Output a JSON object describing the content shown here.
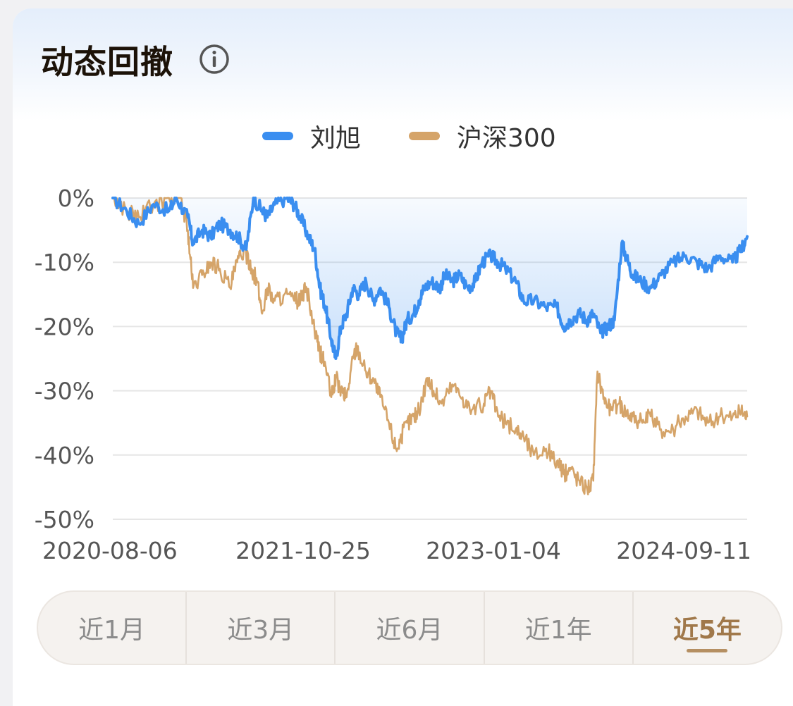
{
  "header": {
    "title": "动态回撤",
    "info_icon": "info-circle-icon"
  },
  "colors": {
    "fund": "#3a8ef0",
    "index": "#d5a469",
    "active_tab": "#a0784a"
  },
  "range_tabs": [
    {
      "label": "近1月",
      "active": false
    },
    {
      "label": "近3月",
      "active": false
    },
    {
      "label": "近6月",
      "active": false
    },
    {
      "label": "近1年",
      "active": false
    },
    {
      "label": "近5年",
      "active": true
    }
  ],
  "chart_data": {
    "type": "line",
    "title": "",
    "xlabel": "",
    "ylabel": "",
    "ylim": [
      -50,
      0
    ],
    "yticks": [
      "0%",
      "-10%",
      "-20%",
      "-30%",
      "-40%",
      "-50%"
    ],
    "yticks_values": [
      0,
      -10,
      -20,
      -30,
      -40,
      -50
    ],
    "xticks": [
      "2020-08-06",
      "2021-10-25",
      "2023-01-04",
      "2024-09-11"
    ],
    "x_range": [
      "2020-08-06",
      "2025-08-06"
    ],
    "grid": true,
    "legend": "top-center",
    "series": [
      {
        "name": "刘旭",
        "color": "#3a8ef0",
        "fill": true,
        "points": [
          [
            "2020-08-06",
            0
          ],
          [
            "2020-09-15",
            -2
          ],
          [
            "2020-10-20",
            -4
          ],
          [
            "2020-12-01",
            -1
          ],
          [
            "2021-01-15",
            -2
          ],
          [
            "2021-02-05",
            0
          ],
          [
            "2021-03-10",
            -3
          ],
          [
            "2021-03-25",
            -7
          ],
          [
            "2021-04-20",
            -5
          ],
          [
            "2021-05-15",
            -6
          ],
          [
            "2021-06-10",
            -4
          ],
          [
            "2021-07-10",
            -5
          ],
          [
            "2021-08-01",
            -6
          ],
          [
            "2021-08-25",
            -8
          ],
          [
            "2021-09-15",
            0
          ],
          [
            "2021-10-10",
            -2
          ],
          [
            "2021-10-25",
            -3
          ],
          [
            "2021-11-15",
            -1
          ],
          [
            "2021-12-20",
            0
          ],
          [
            "2022-01-10",
            -1
          ],
          [
            "2022-01-28",
            -3
          ],
          [
            "2022-02-20",
            -6
          ],
          [
            "2022-03-10",
            -8
          ],
          [
            "2022-03-25",
            -14
          ],
          [
            "2022-04-10",
            -17
          ],
          [
            "2022-04-27",
            -22
          ],
          [
            "2022-05-10",
            -25
          ],
          [
            "2022-05-25",
            -20
          ],
          [
            "2022-06-10",
            -18
          ],
          [
            "2022-06-28",
            -14
          ],
          [
            "2022-07-15",
            -15
          ],
          [
            "2022-08-05",
            -13
          ],
          [
            "2022-08-25",
            -16
          ],
          [
            "2022-09-15",
            -14
          ],
          [
            "2022-10-10",
            -17
          ],
          [
            "2022-10-31",
            -21
          ],
          [
            "2022-11-15",
            -22
          ],
          [
            "2022-12-01",
            -19
          ],
          [
            "2022-12-20",
            -18
          ],
          [
            "2023-01-04",
            -16
          ],
          [
            "2023-01-20",
            -14
          ],
          [
            "2023-02-10",
            -13
          ],
          [
            "2023-03-05",
            -14
          ],
          [
            "2023-03-20",
            -12
          ],
          [
            "2023-04-10",
            -13
          ],
          [
            "2023-05-01",
            -12
          ],
          [
            "2023-05-25",
            -14
          ],
          [
            "2023-06-15",
            -13
          ],
          [
            "2023-07-05",
            -10
          ],
          [
            "2023-07-30",
            -9
          ],
          [
            "2023-08-20",
            -10
          ],
          [
            "2023-09-10",
            -11
          ],
          [
            "2023-10-10",
            -13
          ],
          [
            "2023-11-01",
            -16
          ],
          [
            "2023-12-01",
            -16
          ],
          [
            "2024-01-05",
            -17
          ],
          [
            "2024-02-05",
            -17
          ],
          [
            "2024-02-25",
            -20
          ],
          [
            "2024-03-15",
            -19
          ],
          [
            "2024-04-10",
            -18
          ],
          [
            "2024-05-01",
            -19
          ],
          [
            "2024-05-20",
            -18
          ],
          [
            "2024-06-10",
            -21
          ],
          [
            "2024-07-01",
            -20
          ],
          [
            "2024-07-20",
            -19
          ],
          [
            "2024-08-10",
            -7
          ],
          [
            "2024-08-28",
            -10
          ],
          [
            "2024-09-11",
            -12
          ],
          [
            "2024-10-05",
            -13
          ],
          [
            "2024-11-01",
            -14
          ],
          [
            "2024-12-01",
            -12
          ],
          [
            "2025-01-05",
            -10
          ],
          [
            "2025-02-10",
            -9
          ],
          [
            "2025-03-15",
            -10
          ],
          [
            "2025-04-15",
            -11
          ],
          [
            "2025-05-20",
            -9
          ],
          [
            "2025-06-25",
            -10
          ],
          [
            "2025-07-20",
            -8
          ],
          [
            "2025-08-06",
            -6
          ]
        ]
      },
      {
        "name": "沪深300",
        "color": "#d5a469",
        "fill": false,
        "points": [
          [
            "2020-08-06",
            0
          ],
          [
            "2020-09-15",
            -2
          ],
          [
            "2020-10-20",
            -3
          ],
          [
            "2020-12-01",
            -1
          ],
          [
            "2021-01-15",
            0
          ],
          [
            "2021-02-18",
            0
          ],
          [
            "2021-03-10",
            -5
          ],
          [
            "2021-03-25",
            -14
          ],
          [
            "2021-04-20",
            -12
          ],
          [
            "2021-05-15",
            -10
          ],
          [
            "2021-06-10",
            -11
          ],
          [
            "2021-07-10",
            -14
          ],
          [
            "2021-07-30",
            -10
          ],
          [
            "2021-08-20",
            -8
          ],
          [
            "2021-09-10",
            -11
          ],
          [
            "2021-09-25",
            -13
          ],
          [
            "2021-10-10",
            -18
          ],
          [
            "2021-10-25",
            -14
          ],
          [
            "2021-11-15",
            -16
          ],
          [
            "2021-12-13",
            -15
          ],
          [
            "2022-01-10",
            -16
          ],
          [
            "2022-01-28",
            -16
          ],
          [
            "2022-02-15",
            -14
          ],
          [
            "2022-03-10",
            -21
          ],
          [
            "2022-03-25",
            -24
          ],
          [
            "2022-04-10",
            -26
          ],
          [
            "2022-04-27",
            -31
          ],
          [
            "2022-05-10",
            -28
          ],
          [
            "2022-05-25",
            -30
          ],
          [
            "2022-06-10",
            -31
          ],
          [
            "2022-06-28",
            -25
          ],
          [
            "2022-07-10",
            -23
          ],
          [
            "2022-08-05",
            -27
          ],
          [
            "2022-08-25",
            -28
          ],
          [
            "2022-09-15",
            -31
          ],
          [
            "2022-10-10",
            -35
          ],
          [
            "2022-10-31",
            -39
          ],
          [
            "2022-11-15",
            -37
          ],
          [
            "2022-12-01",
            -35
          ],
          [
            "2022-12-20",
            -34
          ],
          [
            "2023-01-04",
            -33
          ],
          [
            "2023-01-28",
            -28
          ],
          [
            "2023-02-15",
            -30
          ],
          [
            "2023-03-10",
            -32
          ],
          [
            "2023-04-10",
            -29
          ],
          [
            "2023-05-10",
            -31
          ],
          [
            "2023-06-05",
            -33
          ],
          [
            "2023-07-10",
            -32
          ],
          [
            "2023-07-30",
            -30
          ],
          [
            "2023-08-20",
            -34
          ],
          [
            "2023-09-10",
            -35
          ],
          [
            "2023-10-10",
            -36
          ],
          [
            "2023-11-01",
            -37
          ],
          [
            "2023-12-01",
            -40
          ],
          [
            "2024-01-05",
            -39
          ],
          [
            "2024-02-05",
            -41
          ],
          [
            "2024-02-25",
            -43
          ],
          [
            "2024-03-15",
            -42
          ],
          [
            "2024-04-10",
            -44
          ],
          [
            "2024-05-01",
            -45
          ],
          [
            "2024-05-20",
            -44
          ],
          [
            "2024-06-01",
            -27
          ],
          [
            "2024-06-20",
            -31
          ],
          [
            "2024-07-10",
            -33
          ],
          [
            "2024-08-01",
            -32
          ],
          [
            "2024-08-20",
            -33
          ],
          [
            "2024-09-11",
            -34
          ],
          [
            "2024-10-08",
            -35
          ],
          [
            "2024-11-01",
            -34
          ],
          [
            "2024-12-01",
            -36
          ],
          [
            "2025-01-05",
            -36
          ],
          [
            "2025-02-10",
            -34
          ],
          [
            "2025-03-15",
            -33
          ],
          [
            "2025-04-15",
            -35
          ],
          [
            "2025-05-20",
            -34
          ],
          [
            "2025-06-25",
            -34
          ],
          [
            "2025-07-20",
            -33
          ],
          [
            "2025-08-06",
            -34
          ]
        ]
      }
    ]
  }
}
